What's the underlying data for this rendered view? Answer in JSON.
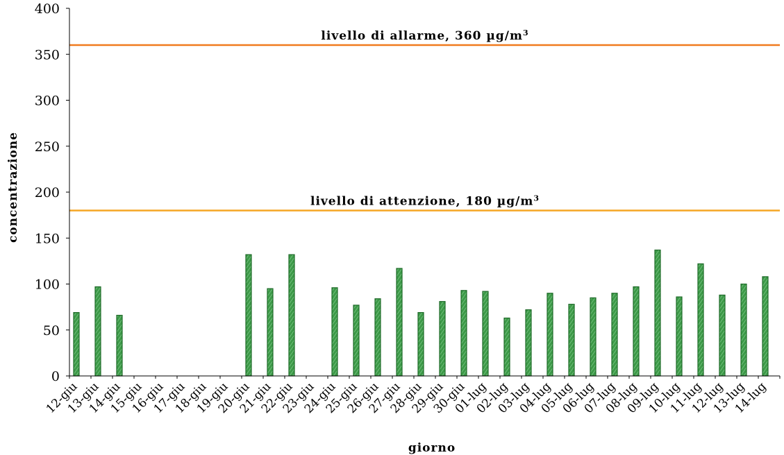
{
  "chart_data": {
    "type": "bar",
    "xlabel": "giorno",
    "ylabel": "concentrazione",
    "ylim": [
      0,
      400
    ],
    "yticks": [
      0,
      50,
      100,
      150,
      200,
      250,
      300,
      350,
      400
    ],
    "grid": false,
    "categories": [
      "12-giu",
      "13-giu",
      "14-giu",
      "15-giu",
      "16-giu",
      "17-giu",
      "18-giu",
      "19-giu",
      "20-giu",
      "21-giu",
      "22-giu",
      "23-giu",
      "24-giu",
      "25-giu",
      "26-giu",
      "27-giu",
      "28-giu",
      "29-giu",
      "30-giu",
      "01-lug",
      "02-lug",
      "03-lug",
      "04-lug",
      "05-lug",
      "06-lug",
      "07-lug",
      "08-lug",
      "09-lug",
      "10-lug",
      "11-lug",
      "12-lug",
      "13-lug",
      "14-lug"
    ],
    "values": [
      69,
      97,
      66,
      0,
      0,
      0,
      0,
      0,
      132,
      95,
      132,
      0,
      96,
      77,
      84,
      117,
      69,
      81,
      93,
      92,
      63,
      72,
      90,
      78,
      85,
      90,
      97,
      137,
      86,
      122,
      88,
      100,
      108
    ],
    "bar_color": "#2f8a3a",
    "reference_lines": [
      {
        "value": 360,
        "label": "livello di allarme,   360 µg/m",
        "sup": "3",
        "color": "#f07a1e"
      },
      {
        "value": 180,
        "label": "livello di attenzione,  180 µg/m",
        "sup": "3",
        "color": "#f5a623"
      }
    ]
  }
}
